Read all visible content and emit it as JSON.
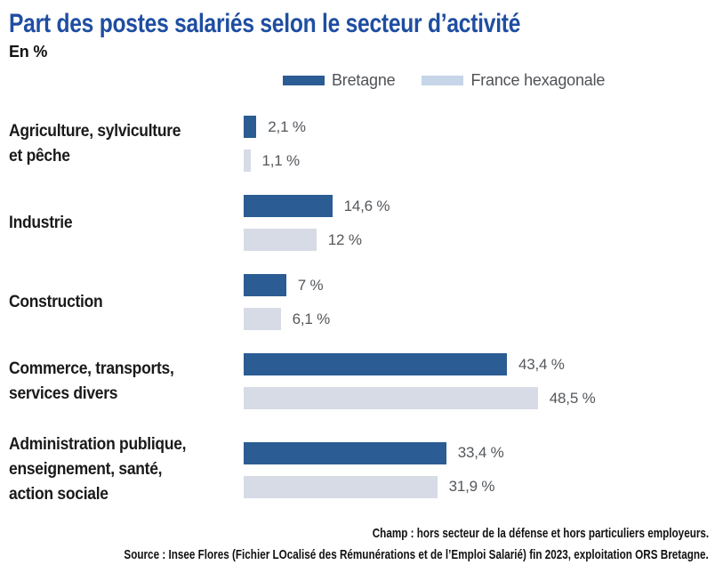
{
  "title": "Part des postes salariés selon le secteur d’activité",
  "subtitle": "En %",
  "legend": {
    "items": [
      {
        "label": "Bretagne",
        "swatch_color": "#2b5c93"
      },
      {
        "label": "France hexagonale",
        "swatch_color": "#c6d5e8"
      }
    ]
  },
  "chart_data": {
    "type": "bar",
    "orientation": "horizontal",
    "unit": "%",
    "xlim": [
      0,
      50
    ],
    "grid": false,
    "legend_position": "top",
    "value_labels_shown": true,
    "categories": [
      "Agriculture, sylviculture\net pêche",
      "Industrie",
      "Construction",
      "Commerce, transports,\nservices divers",
      "Administration publique,\nenseignement, santé,\naction sociale"
    ],
    "series": [
      {
        "name": "Bretagne",
        "color": "#2b5c93",
        "values": [
          2.1,
          14.6,
          7,
          43.4,
          33.4
        ],
        "value_labels": [
          "2,1 %",
          "14,6 %",
          "7 %",
          "43,4 %",
          "33,4 %"
        ]
      },
      {
        "name": "France hexagonale",
        "color": "#d7dbe6",
        "values": [
          1.1,
          12,
          6.1,
          48.5,
          31.9
        ],
        "value_labels": [
          "1,1 %",
          "12 %",
          "6,1 %",
          "48,5 %",
          "31,9 %"
        ]
      }
    ]
  },
  "footer": {
    "champ": "Champ : hors secteur de la défense et hors particuliers employeurs.",
    "source": "Source : Insee Flores (Fichier LOcalisé des Rémunérations et de l’Emploi Salarié) fin 2023, exploitation ORS Bretagne."
  },
  "colors": {
    "title": "#1f4ea1",
    "text": "#1a1a1a",
    "muted_text": "#54575b"
  }
}
